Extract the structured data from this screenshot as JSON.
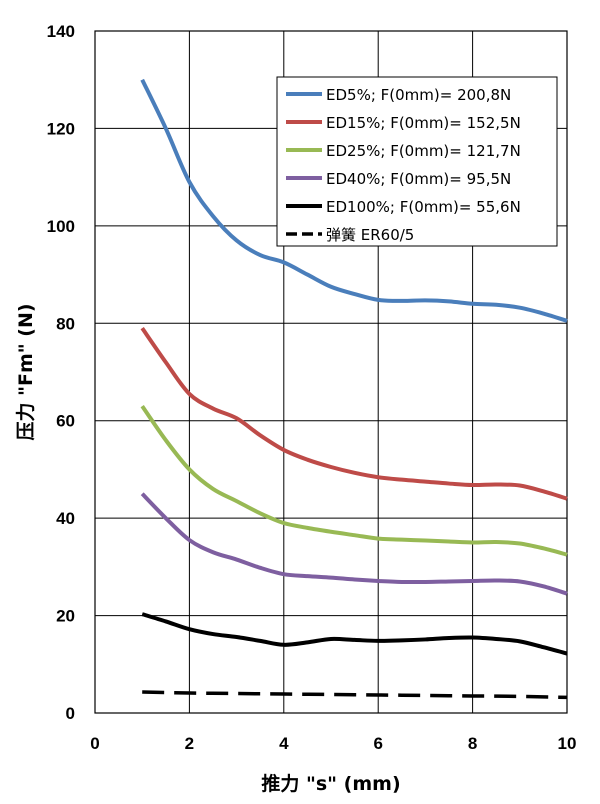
{
  "chart_data": {
    "type": "line",
    "xlabel": "推力 \"s\" (mm)",
    "ylabel": "压力 \"Fm\" (N)",
    "xlim": [
      0,
      10
    ],
    "ylim": [
      0,
      140
    ],
    "xticks": [
      0,
      2,
      4,
      6,
      8,
      10
    ],
    "yticks": [
      0,
      20,
      40,
      60,
      80,
      100,
      120,
      140
    ],
    "grid": true,
    "legend_position": "top-right",
    "series": [
      {
        "name": "ED5%; F(0mm)= 200,8N",
        "color": "#4a7ebb",
        "dashed": false,
        "x": [
          1,
          1.5,
          2,
          2.5,
          3,
          3.5,
          4,
          4.5,
          5,
          5.5,
          6,
          6.5,
          7,
          7.5,
          8,
          8.5,
          9,
          9.5,
          10
        ],
        "y": [
          130,
          120,
          109,
          102,
          97,
          94,
          92.5,
          90,
          87.5,
          86,
          84.8,
          84.6,
          84.7,
          84.5,
          84,
          83.8,
          83.2,
          82,
          80.5
        ]
      },
      {
        "name": "ED15%; F(0mm)= 152,5N",
        "color": "#be4b48",
        "dashed": false,
        "x": [
          1,
          1.5,
          2,
          2.5,
          3,
          3.5,
          4,
          4.5,
          5,
          5.5,
          6,
          6.5,
          7,
          7.5,
          8,
          8.5,
          9,
          9.5,
          10
        ],
        "y": [
          79,
          72,
          65.5,
          62.5,
          60.5,
          57,
          54,
          52,
          50.5,
          49.3,
          48.4,
          47.9,
          47.5,
          47.1,
          46.8,
          46.9,
          46.7,
          45.5,
          44
        ]
      },
      {
        "name": "ED25%; F(0mm)= 121,7N",
        "color": "#98b954",
        "dashed": false,
        "x": [
          1,
          1.5,
          2,
          2.5,
          3,
          3.5,
          4,
          4.5,
          5,
          5.5,
          6,
          6.5,
          7,
          7.5,
          8,
          8.5,
          9,
          9.5,
          10
        ],
        "y": [
          63,
          56,
          50,
          46,
          43.5,
          41,
          39,
          38,
          37.2,
          36.5,
          35.8,
          35.6,
          35.4,
          35.2,
          35.0,
          35.1,
          34.8,
          33.8,
          32.5
        ]
      },
      {
        "name": "ED40%; F(0mm)= 95,5N",
        "color": "#7e5fa0",
        "dashed": false,
        "x": [
          1,
          1.5,
          2,
          2.5,
          3,
          3.5,
          4,
          4.5,
          5,
          5.5,
          6,
          6.5,
          7,
          7.5,
          8,
          8.5,
          9,
          9.5,
          10
        ],
        "y": [
          45,
          40,
          35.5,
          33,
          31.5,
          29.8,
          28.5,
          28.1,
          27.8,
          27.4,
          27.1,
          26.9,
          26.9,
          27.0,
          27.1,
          27.2,
          27.0,
          26.0,
          24.5
        ]
      },
      {
        "name": "ED100%; F(0mm)= 55,6N",
        "color": "#000000",
        "dashed": false,
        "x": [
          1,
          1.5,
          2,
          2.5,
          3,
          3.5,
          4,
          4.5,
          5,
          5.5,
          6,
          6.5,
          7,
          7.5,
          8,
          8.5,
          9,
          9.5,
          10
        ],
        "y": [
          20.3,
          18.8,
          17.2,
          16.2,
          15.6,
          14.8,
          14.0,
          14.5,
          15.2,
          15.0,
          14.8,
          14.9,
          15.1,
          15.4,
          15.5,
          15.2,
          14.7,
          13.5,
          12.2
        ]
      },
      {
        "name": "弹簧    ER60/5",
        "color": "#000000",
        "dashed": true,
        "x": [
          1,
          2,
          3,
          4,
          5,
          6,
          7,
          8,
          9,
          10
        ],
        "y": [
          4.3,
          4.1,
          4.0,
          3.9,
          3.8,
          3.7,
          3.6,
          3.5,
          3.4,
          3.2
        ]
      }
    ]
  }
}
